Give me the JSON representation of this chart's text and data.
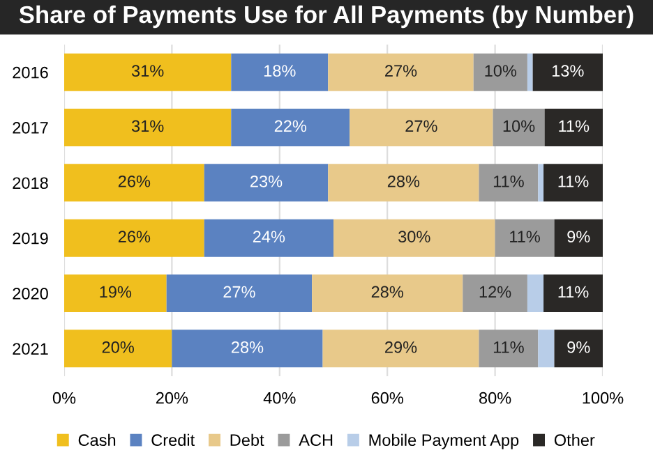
{
  "chart_data": {
    "type": "bar",
    "orientation": "horizontal",
    "stacked": true,
    "title": "Share of Payments Use for All Payments (by Number)",
    "categories": [
      "2016",
      "2017",
      "2018",
      "2019",
      "2020",
      "2021"
    ],
    "series": [
      {
        "name": "Cash",
        "color": "#f0bf1e",
        "values": [
          31,
          31,
          26,
          26,
          19,
          20
        ],
        "value_labels": [
          "31%",
          "31%",
          "26%",
          "26%",
          "19%",
          "20%"
        ]
      },
      {
        "name": "Credit",
        "color": "#5b82c1",
        "values": [
          18,
          22,
          23,
          24,
          27,
          28
        ],
        "value_labels": [
          "18%",
          "22%",
          "23%",
          "24%",
          "27%",
          "28%"
        ]
      },
      {
        "name": "Debt",
        "color": "#e8c98a",
        "values": [
          27,
          26.6,
          28,
          30,
          28,
          29
        ],
        "value_labels": [
          "27%",
          "27%",
          "28%",
          "30%",
          "28%",
          "29%"
        ]
      },
      {
        "name": "ACH",
        "color": "#9b9b9b",
        "values": [
          10,
          9.6,
          11,
          11,
          12,
          11
        ],
        "value_labels": [
          "10%",
          "10%",
          "11%",
          "11%",
          "12%",
          "11%"
        ]
      },
      {
        "name": "Mobile Payment App",
        "color": "#b8cde8",
        "values": [
          1,
          0,
          1,
          0,
          3,
          3
        ],
        "value_labels": [
          null,
          null,
          null,
          null,
          null,
          null
        ]
      },
      {
        "name": "Other",
        "color": "#2a2826",
        "values": [
          13,
          10.8,
          11,
          9,
          11,
          9
        ],
        "value_labels": [
          "13%",
          "11%",
          "11%",
          "9%",
          "11%",
          "9%"
        ]
      }
    ],
    "xlim": [
      0,
      100
    ],
    "xticks": [
      {
        "value": 0,
        "label": "0%"
      },
      {
        "value": 20,
        "label": "20%"
      },
      {
        "value": 40,
        "label": "40%"
      },
      {
        "value": 60,
        "label": "60%"
      },
      {
        "value": 80,
        "label": "80%"
      },
      {
        "value": 100,
        "label": "100%"
      }
    ],
    "grid": "x",
    "legend": "bottom"
  }
}
